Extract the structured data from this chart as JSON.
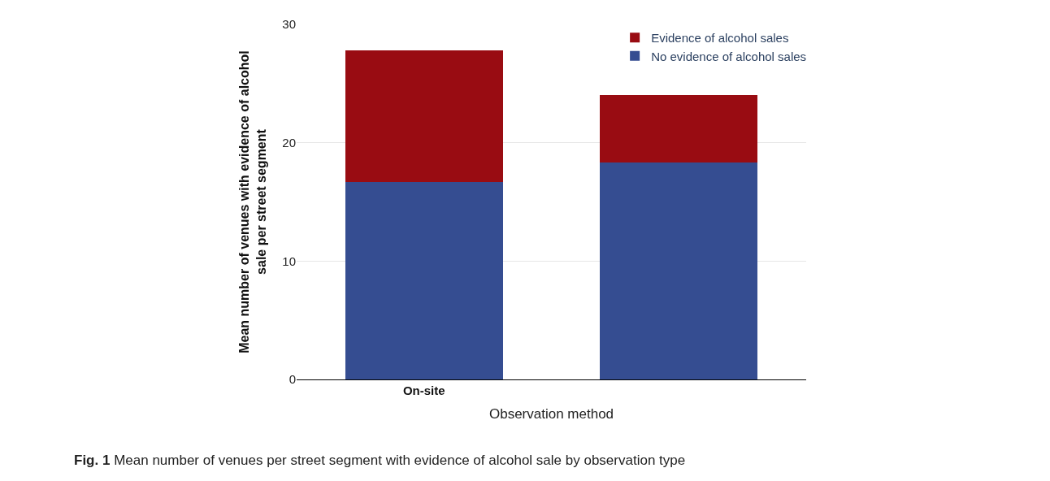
{
  "chart_data": {
    "type": "bar",
    "stacked": true,
    "categories": [
      "On-site",
      null
    ],
    "series": [
      {
        "name": "No evidence of alcohol sales",
        "color": "#354d91",
        "values": [
          16.7,
          18.3
        ]
      },
      {
        "name": "Evidence of alcohol sales",
        "color": "#990c12",
        "values": [
          11.1,
          5.7
        ]
      }
    ],
    "xlabel": "Observation method",
    "ylabel": "Mean number of venues with evidence of alcohol sale per street segment",
    "ylim": [
      0,
      30
    ],
    "yticks": [
      0,
      10,
      20,
      30
    ],
    "grid": "y",
    "legend": "top right",
    "annotations": [
      "Fig. 1",
      "Mean number of venues per street segment with evidence of alcohol sale by observation type"
    ]
  }
}
